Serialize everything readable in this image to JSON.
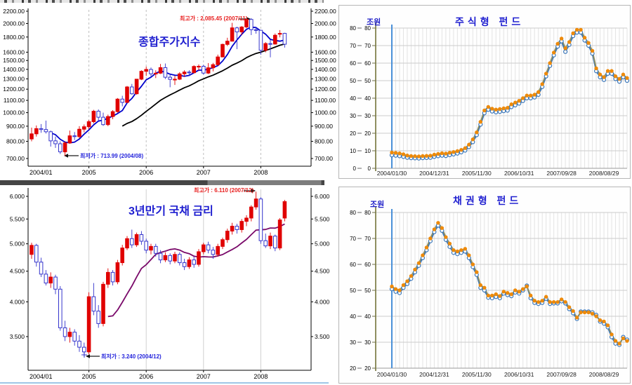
{
  "accent_colors": {
    "candle_up": "#e00000",
    "candle_down": "#3434cc",
    "ma_short": "#0000cc",
    "ma_long": "#000000",
    "ma_bond": "#7a0a6a",
    "title_blue": "#1f1fd0",
    "fund_orange": "#ee8a0a",
    "fund_blue": "#3c77b9",
    "axis_olive": "#8f8f60",
    "axis_blue": "#4a90d8"
  },
  "chart_data": [
    {
      "type": "candlestick",
      "name": "kospi",
      "title": "종합주가지수",
      "y_scale": "log",
      "annotations": {
        "high": "최고가 : 2,085.45 (2007/11)",
        "low": "최저가 : 713.99 (2004/08)"
      },
      "y_ticks": [
        "2200.00",
        "2000.00",
        "1800.00",
        "1600.00",
        "1500.00",
        "1400.00",
        "1300.00",
        "1200.00",
        "1100.00",
        "1000.00",
        "900.00",
        "800.00",
        "700.00"
      ],
      "x_ticks": [
        "2004/01",
        "2005",
        "2006",
        "2007",
        "2008"
      ],
      "candles": [
        [
          815,
          890,
          800,
          848
        ],
        [
          848,
          905,
          830,
          883
        ],
        [
          883,
          915,
          855,
          877
        ],
        [
          877,
          940,
          850,
          862
        ],
        [
          862,
          870,
          768,
          803
        ],
        [
          803,
          830,
          760,
          785
        ],
        [
          785,
          800,
          725,
          737
        ],
        [
          737,
          800,
          714,
          790
        ],
        [
          790,
          870,
          785,
          835
        ],
        [
          835,
          860,
          808,
          830
        ],
        [
          830,
          900,
          820,
          879
        ],
        [
          879,
          912,
          858,
          896
        ],
        [
          896,
          945,
          878,
          932
        ],
        [
          932,
          1022,
          920,
          1011
        ],
        [
          1011,
          1025,
          940,
          965
        ],
        [
          965,
          1000,
          902,
          911
        ],
        [
          911,
          985,
          900,
          970
        ],
        [
          970,
          1020,
          950,
          1008
        ],
        [
          1008,
          1120,
          1000,
          1111
        ],
        [
          1111,
          1140,
          1050,
          1083
        ],
        [
          1083,
          1230,
          1078,
          1221
        ],
        [
          1221,
          1250,
          1150,
          1158
        ],
        [
          1158,
          1300,
          1150,
          1297
        ],
        [
          1297,
          1390,
          1288,
          1379
        ],
        [
          1379,
          1430,
          1330,
          1399
        ],
        [
          1399,
          1420,
          1318,
          1352
        ],
        [
          1352,
          1390,
          1308,
          1359
        ],
        [
          1359,
          1460,
          1350,
          1419
        ],
        [
          1419,
          1465,
          1298,
          1317
        ],
        [
          1317,
          1340,
          1218,
          1295
        ],
        [
          1295,
          1330,
          1240,
          1297
        ],
        [
          1297,
          1370,
          1288,
          1352
        ],
        [
          1352,
          1390,
          1320,
          1371
        ],
        [
          1371,
          1390,
          1328,
          1364
        ],
        [
          1364,
          1445,
          1358,
          1432
        ],
        [
          1432,
          1455,
          1388,
          1434
        ],
        [
          1434,
          1450,
          1345,
          1360
        ],
        [
          1360,
          1470,
          1350,
          1417
        ],
        [
          1417,
          1472,
          1378,
          1452
        ],
        [
          1452,
          1570,
          1440,
          1542
        ],
        [
          1542,
          1710,
          1538,
          1700
        ],
        [
          1700,
          1790,
          1678,
          1743
        ],
        [
          1743,
          2010,
          1738,
          1933
        ],
        [
          1933,
          1950,
          1638,
          1873
        ],
        [
          1873,
          1960,
          1828,
          1946
        ],
        [
          1946,
          2070,
          1928,
          2064
        ],
        [
          2064,
          2085,
          1828,
          1906
        ],
        [
          1906,
          1950,
          1848,
          1897
        ],
        [
          1897,
          1900,
          1568,
          1624
        ],
        [
          1624,
          1730,
          1598,
          1711
        ],
        [
          1711,
          1758,
          1537,
          1704
        ],
        [
          1704,
          1850,
          1698,
          1825
        ],
        [
          1840,
          1900,
          1795,
          1852
        ],
        [
          1852,
          1860,
          1658,
          1702
        ]
      ]
    },
    {
      "type": "candlestick",
      "name": "bond-rate",
      "title": "3년만기 국채 금리",
      "y_scale": "log",
      "annotations": {
        "high": "최고가 : 6.110 (2007/12)",
        "low": "최저가 : 3.240 (2004/12)"
      },
      "y_ticks": [
        "6.000",
        "5.500",
        "5.000",
        "4.500",
        "4.000",
        "3.500"
      ],
      "x_ticks": [
        "2004/01",
        "2005",
        "2006",
        "2007",
        "2008"
      ],
      "candles": [
        [
          4.8,
          5.02,
          4.72,
          4.97
        ],
        [
          4.97,
          5.0,
          4.58,
          4.66
        ],
        [
          4.66,
          4.74,
          4.4,
          4.45
        ],
        [
          4.45,
          4.52,
          4.26,
          4.3
        ],
        [
          4.3,
          4.48,
          4.22,
          4.4
        ],
        [
          4.4,
          4.44,
          4.12,
          4.2
        ],
        [
          4.2,
          4.25,
          3.58,
          3.62
        ],
        [
          3.62,
          3.72,
          3.44,
          3.5
        ],
        [
          3.5,
          3.62,
          3.42,
          3.56
        ],
        [
          3.56,
          3.6,
          3.38,
          3.44
        ],
        [
          3.44,
          3.52,
          3.3,
          3.36
        ],
        [
          3.36,
          3.42,
          3.24,
          3.3
        ],
        [
          3.3,
          4.15,
          3.27,
          4.08
        ],
        [
          4.08,
          4.3,
          3.8,
          3.86
        ],
        [
          3.86,
          3.95,
          3.62,
          3.68
        ],
        [
          3.68,
          4.32,
          3.64,
          4.28
        ],
        [
          4.28,
          4.55,
          4.22,
          4.48
        ],
        [
          4.48,
          4.52,
          4.26,
          4.32
        ],
        [
          4.32,
          4.7,
          4.28,
          4.65
        ],
        [
          4.65,
          4.98,
          4.6,
          4.92
        ],
        [
          4.92,
          5.15,
          4.88,
          5.1
        ],
        [
          5.1,
          5.28,
          4.92,
          4.98
        ],
        [
          4.98,
          5.22,
          4.94,
          5.18
        ],
        [
          5.18,
          5.25,
          4.98,
          5.05
        ],
        [
          5.05,
          5.1,
          4.82,
          4.88
        ],
        [
          4.88,
          5.0,
          4.8,
          4.95
        ],
        [
          4.95,
          5.0,
          4.76,
          4.82
        ],
        [
          4.82,
          4.88,
          4.64,
          4.7
        ],
        [
          4.7,
          4.84,
          4.66,
          4.78
        ],
        [
          4.78,
          4.82,
          4.62,
          4.68
        ],
        [
          4.68,
          4.85,
          4.64,
          4.8
        ],
        [
          4.8,
          4.84,
          4.6,
          4.65
        ],
        [
          4.65,
          4.72,
          4.52,
          4.58
        ],
        [
          4.58,
          4.75,
          4.54,
          4.7
        ],
        [
          4.7,
          4.76,
          4.56,
          4.62
        ],
        [
          4.62,
          4.9,
          4.58,
          4.85
        ],
        [
          4.85,
          5.02,
          4.8,
          4.98
        ],
        [
          4.98,
          5.04,
          4.82,
          4.88
        ],
        [
          4.88,
          4.94,
          4.72,
          4.8
        ],
        [
          4.8,
          5.0,
          4.76,
          4.95
        ],
        [
          4.95,
          5.12,
          4.9,
          5.08
        ],
        [
          5.08,
          5.3,
          5.02,
          5.25
        ],
        [
          5.25,
          5.42,
          5.18,
          5.35
        ],
        [
          5.35,
          5.4,
          5.2,
          5.28
        ],
        [
          5.28,
          5.5,
          5.22,
          5.45
        ],
        [
          5.45,
          5.58,
          5.35,
          5.52
        ],
        [
          5.52,
          5.8,
          5.45,
          5.76
        ],
        [
          5.76,
          6.11,
          5.7,
          5.94
        ],
        [
          5.94,
          5.98,
          5.0,
          5.06
        ],
        [
          5.06,
          5.2,
          4.92,
          4.96
        ],
        [
          4.96,
          5.22,
          4.9,
          5.15
        ],
        [
          5.15,
          5.18,
          4.86,
          4.92
        ],
        [
          4.92,
          5.52,
          4.88,
          5.48
        ],
        [
          5.52,
          5.92,
          5.45,
          5.88
        ]
      ]
    },
    {
      "type": "line",
      "name": "equity-fund",
      "title": "주식형 펀드",
      "unit_label": "조원",
      "ylim": [
        0,
        80
      ],
      "y_ticks": [
        80,
        70,
        60,
        50,
        40,
        30,
        20,
        10,
        0
      ],
      "x_ticks": [
        "2004/01/30",
        "2004/12/31",
        "2005/11/30",
        "2006/10/31",
        "2007/09/28",
        "2008/08/29"
      ],
      "series": [
        {
          "name": "series-blue",
          "values": [
            7.5,
            7.3,
            7.0,
            6.6,
            6.1,
            5.9,
            5.8,
            5.7,
            5.9,
            6.0,
            6.1,
            6.6,
            7.0,
            7.3,
            7.1,
            7.6,
            8.0,
            8.5,
            9.2,
            10.2,
            12.2,
            15.0,
            19.0,
            25.0,
            31.5,
            33.5,
            32.5,
            32.0,
            32.3,
            32.7,
            33.0,
            35.0,
            36.0,
            37.0,
            38.5,
            40.0,
            40.0,
            40.5,
            42.0,
            46.5,
            52.5,
            58.5,
            64.5,
            69.5,
            72.5,
            66.5,
            70.5,
            75.5,
            77.5,
            77.5,
            73.0,
            70.0,
            65.5,
            55.5,
            52.0,
            50.5,
            54.0,
            54.0,
            51.0,
            49.5,
            52.0,
            50.0
          ]
        },
        {
          "name": "series-orange",
          "values": [
            9.0,
            8.8,
            8.5,
            8.0,
            7.3,
            7.0,
            6.9,
            6.8,
            7.0,
            7.1,
            7.2,
            7.8,
            8.2,
            8.6,
            8.4,
            8.9,
            9.3,
            9.8,
            10.5,
            11.5,
            13.5,
            16.5,
            20.5,
            26.5,
            33.0,
            35.0,
            34.0,
            33.5,
            33.8,
            34.2,
            34.5,
            36.5,
            37.5,
            38.5,
            40.0,
            41.5,
            41.5,
            42.0,
            43.5,
            48.0,
            54.0,
            60.0,
            66.0,
            71.0,
            74.0,
            68.5,
            72.0,
            77.0,
            79.0,
            79.0,
            74.5,
            71.5,
            67.0,
            57.0,
            53.5,
            52.0,
            55.5,
            55.5,
            52.5,
            51.0,
            53.5,
            51.5
          ]
        }
      ]
    },
    {
      "type": "line",
      "name": "bond-fund",
      "title": "채권형 펀드",
      "unit_label": "조원",
      "ylim": [
        20,
        80
      ],
      "y_ticks": [
        80,
        70,
        60,
        50,
        40,
        30,
        20
      ],
      "x_ticks": [
        "2004/01/30",
        "2004/12/31",
        "2005/11/30",
        "2006/10/31",
        "2007/09/28",
        "2008/08/29"
      ],
      "series": [
        {
          "name": "series-blue",
          "values": [
            50.5,
            49.5,
            49.0,
            51.0,
            52.5,
            54.5,
            57.0,
            59.5,
            62.5,
            65.5,
            69.0,
            72.5,
            75.0,
            73.0,
            69.5,
            66.8,
            64.5,
            64.0,
            64.5,
            65.0,
            62.5,
            59.0,
            56.0,
            51.0,
            50.0,
            47.2,
            47.0,
            47.5,
            47.0,
            48.8,
            48.2,
            47.8,
            49.2,
            48.8,
            50.0,
            51.8,
            47.0,
            45.2,
            44.8,
            45.2,
            46.8,
            44.8,
            45.0,
            45.0,
            45.8,
            45.0,
            42.8,
            41.2,
            39.0,
            41.8,
            41.8,
            41.8,
            41.5,
            40.5,
            38.0,
            37.2,
            35.8,
            32.0,
            29.5,
            29.0,
            32.0,
            31.0
          ]
        },
        {
          "name": "series-orange",
          "values": [
            51.5,
            50.5,
            50.0,
            52.0,
            53.5,
            55.5,
            58.0,
            60.5,
            63.5,
            66.5,
            70.0,
            73.5,
            76.0,
            74.0,
            70.5,
            68.0,
            65.5,
            65.0,
            65.5,
            66.0,
            63.5,
            60.0,
            57.0,
            52.0,
            51.0,
            48.0,
            48.0,
            48.5,
            47.8,
            49.5,
            49.0,
            48.5,
            50.0,
            49.5,
            50.5,
            51.5,
            48.0,
            46.0,
            45.5,
            46.0,
            47.5,
            45.5,
            45.5,
            45.5,
            46.5,
            45.5,
            43.5,
            42.0,
            39.5,
            41.5,
            41.5,
            41.5,
            41.0,
            40.0,
            38.5,
            38.0,
            36.5,
            33.0,
            30.5,
            29.5,
            31.5,
            30.5
          ]
        }
      ]
    }
  ]
}
